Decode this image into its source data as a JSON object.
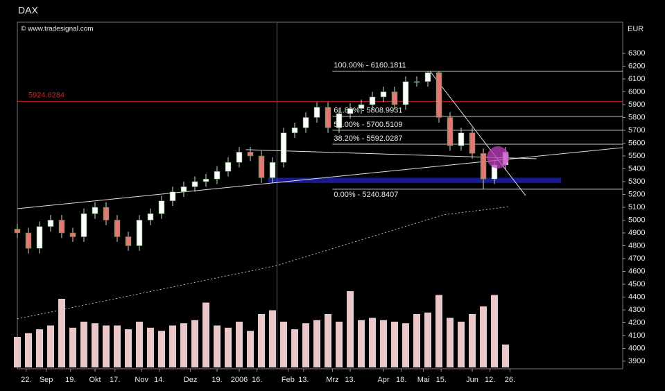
{
  "chart_data": {
    "type": "candlestick",
    "title": "DAX",
    "source": "© www.tradesignal.com",
    "y_unit": "EUR",
    "up_color": "#ffffff",
    "down_color": "#e07878",
    "wick_color": "#d8d8d8",
    "volume_color": "#e8c8c8",
    "x": [
      0,
      5,
      10,
      15,
      20,
      25,
      30,
      35,
      40,
      45,
      50,
      55,
      60,
      65,
      70,
      75,
      80,
      85,
      90,
      95,
      100,
      105,
      110,
      115,
      120,
      125,
      130,
      135,
      140,
      145,
      150,
      155,
      160,
      165,
      170,
      175,
      180,
      185,
      190,
      195,
      200,
      205,
      210,
      215,
      220
    ],
    "ohlc": [
      [
        4930,
        4970,
        4860,
        4900
      ],
      [
        4900,
        4940,
        4740,
        4780
      ],
      [
        4780,
        4990,
        4740,
        4950
      ],
      [
        4950,
        5040,
        4910,
        5000
      ],
      [
        5000,
        5040,
        4860,
        4900
      ],
      [
        4900,
        4940,
        4830,
        4870
      ],
      [
        4870,
        5090,
        4830,
        5050
      ],
      [
        5050,
        5140,
        5010,
        5100
      ],
      [
        5100,
        5140,
        4960,
        5000
      ],
      [
        5000,
        5040,
        4830,
        4870
      ],
      [
        4870,
        4910,
        4760,
        4800
      ],
      [
        4800,
        5040,
        4760,
        5000
      ],
      [
        5000,
        5090,
        4960,
        5050
      ],
      [
        5050,
        5190,
        5010,
        5150
      ],
      [
        5150,
        5260,
        5110,
        5220
      ],
      [
        5220,
        5300,
        5180,
        5260
      ],
      [
        5260,
        5340,
        5220,
        5300
      ],
      [
        5300,
        5360,
        5260,
        5320
      ],
      [
        5320,
        5420,
        5280,
        5380
      ],
      [
        5380,
        5490,
        5340,
        5450
      ],
      [
        5450,
        5570,
        5410,
        5530
      ],
      [
        5530,
        5570,
        5460,
        5500
      ],
      [
        5500,
        5540,
        5290,
        5330
      ],
      [
        5330,
        5490,
        5290,
        5450
      ],
      [
        5450,
        5720,
        5410,
        5680
      ],
      [
        5680,
        5760,
        5640,
        5720
      ],
      [
        5720,
        5840,
        5680,
        5800
      ],
      [
        5800,
        5920,
        5760,
        5880
      ],
      [
        5880,
        5920,
        5680,
        5720
      ],
      [
        5720,
        5870,
        5680,
        5830
      ],
      [
        5830,
        5910,
        5790,
        5870
      ],
      [
        5870,
        5940,
        5830,
        5900
      ],
      [
        5900,
        6000,
        5860,
        5960
      ],
      [
        5960,
        6040,
        5920,
        6000
      ],
      [
        6000,
        6040,
        5860,
        5900
      ],
      [
        5900,
        6120,
        5860,
        6080
      ],
      [
        6080,
        6120,
        6040,
        6080
      ],
      [
        6080,
        6160,
        6040,
        6150
      ],
      [
        6150,
        6160,
        5760,
        5800
      ],
      [
        5800,
        5840,
        5540,
        5580
      ],
      [
        5580,
        5720,
        5540,
        5680
      ],
      [
        5680,
        5720,
        5480,
        5520
      ],
      [
        5520,
        5560,
        5241,
        5320
      ],
      [
        5320,
        5470,
        5280,
        5430
      ],
      [
        5430,
        5570,
        5390,
        5530
      ]
    ],
    "volume": [
      40,
      45,
      50,
      55,
      90,
      52,
      60,
      58,
      55,
      55,
      50,
      60,
      52,
      48,
      55,
      58,
      62,
      85,
      55,
      52,
      60,
      48,
      70,
      75,
      60,
      50,
      58,
      62,
      70,
      60,
      100,
      62,
      65,
      62,
      60,
      58,
      70,
      72,
      95,
      65,
      60,
      70,
      80,
      95,
      30
    ],
    "vlim": [
      0,
      100
    ],
    "xlim": [
      0,
      272.8
    ],
    "ylim": [
      3840.5,
      6543
    ],
    "yticks": [
      3900,
      4000,
      4100,
      4200,
      4300,
      4400,
      4500,
      4600,
      4700,
      4800,
      4900,
      5000,
      5100,
      5200,
      5300,
      5400,
      5500,
      5600,
      5700,
      5800,
      5900,
      6000,
      6100,
      6200,
      6300
    ],
    "xticks": [
      {
        "value": 4,
        "label": "22."
      },
      {
        "value": 13,
        "label": "Sep"
      },
      {
        "value": 24,
        "label": "19."
      },
      {
        "value": 35,
        "label": "Okt"
      },
      {
        "value": 44,
        "label": "17."
      },
      {
        "value": 56,
        "label": "Nov"
      },
      {
        "value": 64,
        "label": "14."
      },
      {
        "value": 78,
        "label": "Dez"
      },
      {
        "value": 90,
        "label": "19."
      },
      {
        "value": 100,
        "label": "2006"
      },
      {
        "value": 108,
        "label": "16."
      },
      {
        "value": 122,
        "label": "Feb"
      },
      {
        "value": 129,
        "label": "13."
      },
      {
        "value": 142,
        "label": "Mrz"
      },
      {
        "value": 150,
        "label": "13."
      },
      {
        "value": 165,
        "label": "Apr"
      },
      {
        "value": 173,
        "label": "18."
      },
      {
        "value": 183,
        "label": "Mai"
      },
      {
        "value": 191,
        "label": "15."
      },
      {
        "value": 205,
        "label": "Jun"
      },
      {
        "value": 213,
        "label": "12."
      },
      {
        "value": 222,
        "label": "26."
      }
    ],
    "level_line": {
      "value": 5924.6284,
      "color": "#d02020"
    },
    "fib_start": 142,
    "fib_levels": [
      {
        "value": 6160.1811,
        "label": "100.00% - 6160.1811"
      },
      {
        "value": 5808.9931,
        "label": "61.80% - 5808.9931"
      },
      {
        "value": 5700.5109,
        "label": "50.00% - 5700.5109"
      },
      {
        "value": 5592.0287,
        "label": "38.20% - 5592.0287"
      },
      {
        "value": 5240.8407,
        "label": "0.00% - 5240.8407"
      }
    ],
    "vline": {
      "x": 117,
      "color": "#4a5ad8"
    },
    "zone": {
      "x": [
        113,
        245
      ],
      "y": [
        5290,
        5330
      ],
      "color": "#1a1a90"
    },
    "trendlines": [
      {
        "x": [
          0,
          272.8
        ],
        "values": [
          5089,
          5565
        ]
      },
      {
        "x": [
          103,
          234
        ],
        "values": [
          5549,
          5478
        ]
      },
      {
        "x": [
          186,
          229
        ],
        "values": [
          6160,
          5192
        ]
      }
    ],
    "moving_average": {
      "x": [
        0,
        117,
        192,
        222
      ],
      "values": [
        4230,
        4646,
        5041,
        5106
      ]
    },
    "highlight": {
      "x": 216.6,
      "y": 5489,
      "color": "#c040c0"
    }
  }
}
